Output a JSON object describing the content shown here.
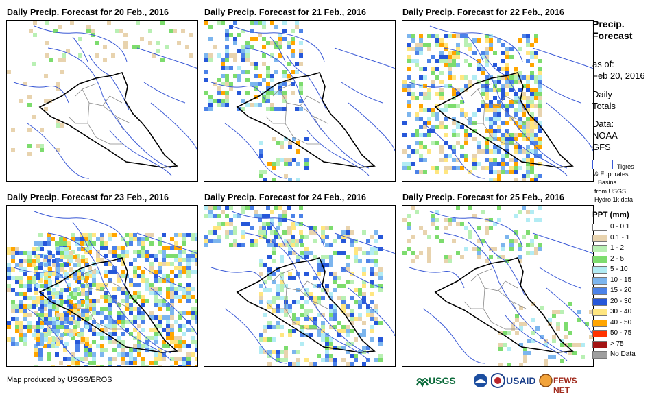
{
  "panels": [
    {
      "title": "Daily Precip. Forecast for 20 Feb., 2016"
    },
    {
      "title": "Daily Precip. Forecast for 21 Feb., 2016"
    },
    {
      "title": "Daily Precip. Forecast for 22 Feb., 2016"
    },
    {
      "title": "Daily Precip. Forecast for 23 Feb., 2016"
    },
    {
      "title": "Daily Precip. Forecast for 24 Feb., 2016"
    },
    {
      "title": "Daily Precip. Forecast for 25 Feb., 2016"
    }
  ],
  "sidebar": {
    "title_line1": "Precip.",
    "title_line2": "Forecast",
    "asof_label": "as of:",
    "asof_date": "Feb 20, 2016",
    "daily_line1": "Daily",
    "daily_line2": "Totals",
    "data_label": "Data:",
    "data_source_line1": "NOAA-",
    "data_source_line2": "GFS"
  },
  "basin_legend": {
    "line1": "Tigres",
    "line2": "& Euphrates",
    "line3": "Basins",
    "line4": "from USGS",
    "line5": "Hydro 1k data",
    "color": "#3b5ad6"
  },
  "ppt_legend": {
    "title": "PPT (mm)",
    "items": [
      {
        "label": "0 - 0.1",
        "color": "#ffffff"
      },
      {
        "label": "0.1 - 1",
        "color": "#e8d3ae"
      },
      {
        "label": "1 - 2",
        "color": "#b9f0b4"
      },
      {
        "label": "2 - 5",
        "color": "#7ddc6e"
      },
      {
        "label": "5 - 10",
        "color": "#b2ecf4"
      },
      {
        "label": "10 - 15",
        "color": "#7cb5ee"
      },
      {
        "label": "15 - 20",
        "color": "#4c82e8"
      },
      {
        "label": "20 - 30",
        "color": "#2657d9"
      },
      {
        "label": "30 - 40",
        "color": "#ffe680"
      },
      {
        "label": "40 - 50",
        "color": "#ffa500"
      },
      {
        "label": "50 - 75",
        "color": "#ff3300"
      },
      {
        "label": "> 75",
        "color": "#a31414"
      },
      {
        "label": "No Data",
        "color": "#9e9e9e"
      }
    ]
  },
  "footer": {
    "credit": "Map produced by USGS/EROS",
    "logo_usgs": "USGS",
    "logo_usaid": "USAID",
    "logo_fews": "FEWS NET"
  }
}
